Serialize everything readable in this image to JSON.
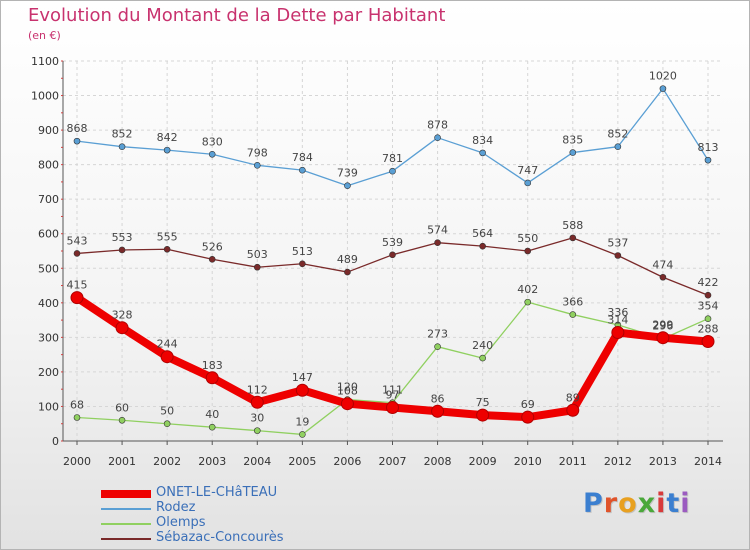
{
  "header": {
    "title": "Evolution du Montant de la Dette par Habitant",
    "subtitle": "(en €)"
  },
  "logo": {
    "text": "Proxiti",
    "letter_colors": [
      "#3b7fd0",
      "#e0532a",
      "#e8a020",
      "#4aa83a",
      "#d83a3a",
      "#3b7fd0",
      "#9b5bc0"
    ]
  },
  "chart_data": {
    "type": "line",
    "x": [
      2000,
      2001,
      2002,
      2003,
      2004,
      2005,
      2006,
      2007,
      2008,
      2009,
      2010,
      2011,
      2012,
      2013,
      2014
    ],
    "ylim": [
      0,
      1100
    ],
    "yticks": [
      0,
      100,
      200,
      300,
      400,
      500,
      600,
      700,
      800,
      900,
      1000,
      1100
    ],
    "grid": true,
    "legend_position": "bottom-left",
    "series": [
      {
        "name": "ONET-LE-CHâTEAU",
        "color": "#ee0000",
        "emphasis": true,
        "values": [
          415,
          328,
          244,
          183,
          112,
          147,
          108,
          97,
          86,
          75,
          69,
          89,
          314,
          299,
          288
        ]
      },
      {
        "name": "Rodez",
        "color": "#5a9fd4",
        "values": [
          868,
          852,
          842,
          830,
          798,
          784,
          739,
          781,
          878,
          834,
          747,
          835,
          852,
          1020,
          813
        ]
      },
      {
        "name": "Olemps",
        "color": "#90d060",
        "values": [
          68,
          60,
          50,
          40,
          30,
          19,
          120,
          111,
          273,
          240,
          402,
          366,
          336,
          296,
          354
        ]
      },
      {
        "name": "Sébazac-Concourès",
        "color": "#7a2a2a",
        "values": [
          543,
          553,
          555,
          526,
          503,
          513,
          489,
          539,
          574,
          564,
          550,
          588,
          537,
          474,
          422
        ]
      }
    ]
  }
}
